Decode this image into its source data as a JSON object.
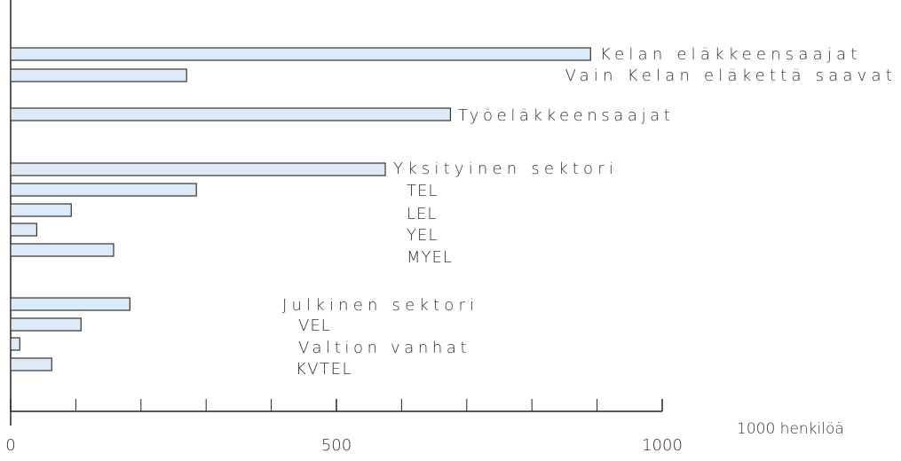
{
  "chart_data": {
    "type": "bar",
    "orientation": "horizontal",
    "categories": [
      "Kelan eläkkeensaajat",
      "Vain Kelan eläkettä saavat",
      "Työeläkkeensaajat",
      "Yksityinen sektori",
      "TEL",
      "LEL",
      "YEL",
      "MYEL",
      "Julkinen sektori",
      "VEL",
      "Valtion vanhat",
      "KVTEL"
    ],
    "values": [
      890,
      270,
      675,
      575,
      285,
      93,
      40,
      158,
      183,
      108,
      14,
      63
    ],
    "color": "#dcebf7",
    "xlim": [
      0,
      1000
    ],
    "xticks": [
      0,
      500,
      1000
    ],
    "xminorticks": [
      100,
      200,
      300,
      400,
      600,
      700,
      800,
      900
    ],
    "xlabel": "1000 henkilöä"
  }
}
